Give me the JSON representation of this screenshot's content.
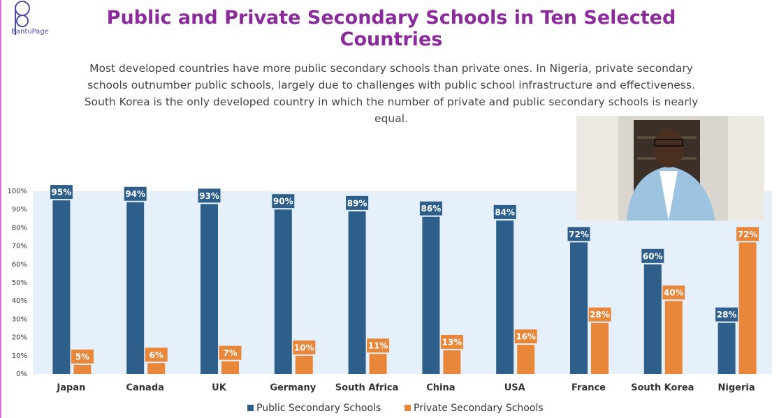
{
  "branding": {
    "logo_text": "BantuPage"
  },
  "chart_data": {
    "type": "grouped_bar",
    "title": "Public and Private Secondary Schools in Ten Selected Countries",
    "subtitle": "Most developed countries have more public secondary schools than private ones. In Nigeria, private secondary schools outnumber public schools, largely due to challenges with public school infrastructure and effectiveness. South Korea is the only developed country in which the number of private and public secondary schools is nearly equal.",
    "categories": [
      "Japan",
      "Canada",
      "UK",
      "Germany",
      "South Africa",
      "China",
      "USA",
      "France",
      "South Korea",
      "Nigeria"
    ],
    "series": [
      {
        "name": "Public Secondary Schools",
        "color": "#2e5f8a",
        "values": [
          95,
          94,
          93,
          90,
          89,
          86,
          84,
          72,
          60,
          28
        ],
        "value_labels": [
          "95%",
          "94%",
          "93%",
          "90%",
          "89%",
          "86%",
          "84%",
          "72%",
          "60%",
          "28%"
        ]
      },
      {
        "name": "Private Secondary Schools",
        "color": "#e8873a",
        "values": [
          5,
          6,
          7,
          10,
          11,
          13,
          16,
          28,
          40,
          72
        ],
        "value_labels": [
          "5%",
          "6%",
          "7%",
          "10%",
          "11%",
          "13%",
          "16%",
          "28%",
          "40%",
          "72%"
        ]
      }
    ],
    "ylim": [
      0,
      100
    ],
    "yticks": [
      {
        "value": 0,
        "label": "0%"
      },
      {
        "value": 10,
        "label": "10%"
      },
      {
        "value": 20,
        "label": "20%"
      },
      {
        "value": 30,
        "label": "30%"
      },
      {
        "value": 40,
        "label": "40%"
      },
      {
        "value": 50,
        "label": "50%"
      },
      {
        "value": 60,
        "label": "60%"
      },
      {
        "value": 70,
        "label": "70%"
      },
      {
        "value": 80,
        "label": "80%"
      },
      {
        "value": 90,
        "label": "90%"
      },
      {
        "value": 100,
        "label": "100%"
      }
    ],
    "legend": "bottom"
  }
}
